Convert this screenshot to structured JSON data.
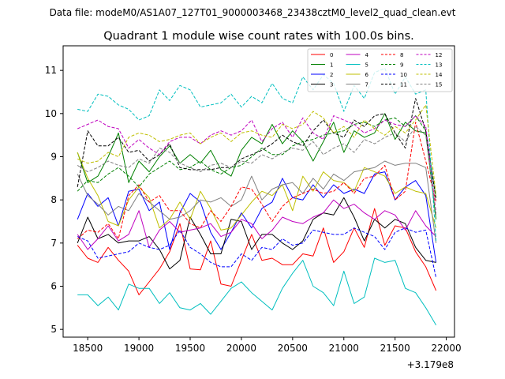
{
  "chart_data": {
    "type": "line",
    "suptitle": "Data file: modeM0/AS1A07_127T01_9000003468_23438cztM0_level2_quad_clean.evt",
    "title": "Quadrant 1 module wise count rates with 100.0s bins.",
    "xlabel": "",
    "ylabel": "",
    "x_offset_label": "+3.179e8",
    "xlim": [
      18260,
      22080
    ],
    "ylim": [
      4.82,
      11.57
    ],
    "xticks": [
      18500,
      19000,
      19500,
      20000,
      20500,
      21000,
      21500,
      22000
    ],
    "yticks": [
      5,
      6,
      7,
      8,
      9,
      10,
      11
    ],
    "x": [
      18400,
      18500,
      18600,
      18700,
      18800,
      18900,
      19000,
      19100,
      19200,
      19300,
      19400,
      19500,
      19600,
      19700,
      19800,
      19900,
      20000,
      20100,
      20200,
      20300,
      20400,
      20500,
      20600,
      20700,
      20800,
      20900,
      21000,
      21100,
      21200,
      21300,
      21400,
      21500,
      21600,
      21700,
      21800,
      21900
    ],
    "legend_position": "upper right",
    "series": [
      {
        "name": "0",
        "color": "#ff0000",
        "dash": "solid",
        "values": [
          6.95,
          6.65,
          6.55,
          6.9,
          6.6,
          6.35,
          5.8,
          6.1,
          6.4,
          6.8,
          7.45,
          6.4,
          6.38,
          7.05,
          6.05,
          6.0,
          6.6,
          7.2,
          6.6,
          6.65,
          6.5,
          6.5,
          6.75,
          6.7,
          7.35,
          6.55,
          6.8,
          7.35,
          6.9,
          7.8,
          6.95,
          7.4,
          7.35,
          6.8,
          6.45,
          5.9
        ]
      },
      {
        "name": "1",
        "color": "#008000",
        "dash": "solid",
        "values": [
          9.1,
          8.4,
          8.55,
          9.0,
          9.55,
          8.4,
          8.9,
          8.65,
          9.0,
          9.25,
          8.85,
          9.05,
          8.85,
          9.15,
          8.7,
          8.55,
          9.15,
          9.45,
          9.3,
          9.75,
          9.3,
          9.6,
          9.35,
          8.9,
          9.35,
          9.8,
          9.1,
          9.6,
          9.45,
          9.55,
          10.0,
          9.4,
          9.8,
          9.6,
          9.55,
          7.55
        ]
      },
      {
        "name": "2",
        "color": "#0000ff",
        "dash": "solid",
        "values": [
          7.55,
          8.15,
          7.85,
          8.05,
          7.4,
          8.2,
          8.25,
          7.75,
          7.95,
          6.85,
          7.7,
          8.15,
          7.95,
          7.25,
          6.85,
          7.25,
          7.7,
          7.35,
          7.8,
          7.95,
          8.5,
          8.05,
          8.0,
          8.35,
          8.05,
          8.35,
          8.15,
          8.25,
          8.15,
          8.6,
          8.65,
          8.0,
          8.3,
          8.45,
          8.1,
          6.55
        ]
      },
      {
        "name": "3",
        "color": "#000000",
        "dash": "solid",
        "values": [
          7.0,
          7.6,
          7.1,
          7.2,
          7.0,
          7.05,
          7.05,
          7.15,
          6.85,
          6.4,
          6.6,
          7.6,
          7.2,
          6.75,
          6.75,
          7.55,
          7.5,
          6.85,
          7.2,
          7.2,
          7.0,
          6.85,
          7.05,
          7.55,
          7.7,
          7.65,
          8.05,
          7.6,
          7.05,
          7.55,
          7.35,
          7.55,
          7.45,
          6.9,
          6.6,
          6.55
        ]
      },
      {
        "name": "4",
        "color": "#bf00bf",
        "dash": "solid",
        "values": [
          7.2,
          6.85,
          7.1,
          7.4,
          7.05,
          7.2,
          7.75,
          6.9,
          7.3,
          7.5,
          7.25,
          7.3,
          7.35,
          7.45,
          7.15,
          7.25,
          7.55,
          7.45,
          7.1,
          7.3,
          7.6,
          7.5,
          7.45,
          7.6,
          7.7,
          8.0,
          7.8,
          7.9,
          7.7,
          7.55,
          7.75,
          7.65,
          7.3,
          7.75,
          7.4,
          7.15
        ]
      },
      {
        "name": "5",
        "color": "#00bfbf",
        "dash": "solid",
        "values": [
          5.8,
          5.8,
          5.55,
          5.75,
          5.45,
          6.05,
          5.95,
          5.95,
          5.6,
          5.85,
          5.5,
          5.45,
          5.6,
          5.35,
          5.65,
          5.95,
          6.1,
          5.85,
          5.65,
          5.45,
          5.95,
          6.3,
          6.6,
          6.0,
          5.85,
          5.55,
          6.35,
          5.6,
          5.75,
          6.65,
          6.55,
          6.6,
          5.95,
          5.85,
          5.5,
          5.1
        ]
      },
      {
        "name": "6",
        "color": "#bfbf00",
        "dash": "solid",
        "values": [
          9.1,
          8.5,
          8.1,
          7.5,
          7.4,
          8.0,
          8.3,
          8.05,
          7.35,
          7.55,
          7.95,
          7.55,
          8.2,
          7.8,
          7.3,
          7.35,
          7.65,
          7.95,
          8.2,
          8.1,
          8.35,
          7.75,
          8.55,
          8.2,
          8.65,
          8.45,
          8.4,
          8.2,
          8.75,
          8.65,
          8.55,
          8.15,
          8.3,
          8.2,
          8.15,
          7.35
        ]
      },
      {
        "name": "7",
        "color": "#808080",
        "dash": "solid",
        "values": [
          8.6,
          8.1,
          7.9,
          7.65,
          7.85,
          7.75,
          8.15,
          7.95,
          7.75,
          7.55,
          7.6,
          7.75,
          8.0,
          7.95,
          8.05,
          7.85,
          8.0,
          8.55,
          8.0,
          8.25,
          8.35,
          8.4,
          8.15,
          8.5,
          8.25,
          8.6,
          8.45,
          8.65,
          8.7,
          8.75,
          8.9,
          8.8,
          8.85,
          8.85,
          8.75,
          7.0
        ]
      },
      {
        "name": "8",
        "color": "#ff0000",
        "dash": "dashed",
        "values": [
          7.1,
          7.3,
          7.25,
          7.45,
          7.1,
          8.1,
          8.35,
          7.95,
          8.1,
          7.75,
          7.75,
          7.45,
          7.35,
          7.75,
          7.5,
          7.85,
          8.3,
          8.25,
          7.9,
          7.5,
          7.85,
          8.05,
          8.15,
          8.25,
          8.15,
          8.2,
          8.4,
          8.15,
          8.5,
          8.55,
          8.8,
          8.0,
          8.2,
          9.8,
          8.9,
          7.95
        ]
      },
      {
        "name": "9",
        "color": "#008000",
        "dash": "dashed",
        "values": [
          8.2,
          8.45,
          8.4,
          8.6,
          8.75,
          8.55,
          8.3,
          8.6,
          8.75,
          8.9,
          8.7,
          8.75,
          8.9,
          8.7,
          8.6,
          8.75,
          8.8,
          9.0,
          9.2,
          9.05,
          9.05,
          9.25,
          9.35,
          9.4,
          9.5,
          9.55,
          9.6,
          9.75,
          9.8,
          9.7,
          9.85,
          9.9,
          9.7,
          9.95,
          9.6,
          8.05
        ]
      },
      {
        "name": "10",
        "color": "#0000ff",
        "dash": "dashed",
        "values": [
          7.15,
          7.05,
          6.65,
          6.7,
          6.75,
          6.8,
          7.0,
          6.9,
          6.85,
          6.95,
          7.3,
          6.9,
          6.75,
          6.55,
          6.45,
          6.45,
          6.75,
          6.6,
          6.9,
          6.85,
          7.1,
          6.95,
          7.0,
          7.3,
          7.25,
          7.2,
          7.2,
          7.35,
          7.25,
          7.15,
          6.85,
          7.25,
          7.35,
          7.25,
          7.3,
          6.2
        ]
      },
      {
        "name": "11",
        "color": "#000000",
        "dash": "dashed",
        "values": [
          8.3,
          9.6,
          9.25,
          9.25,
          9.45,
          9.1,
          9.15,
          8.9,
          9.05,
          9.3,
          8.75,
          8.7,
          8.7,
          8.7,
          8.75,
          8.75,
          8.95,
          9.05,
          9.15,
          9.3,
          9.5,
          9.35,
          9.25,
          9.6,
          9.85,
          9.55,
          9.45,
          9.85,
          9.7,
          9.95,
          10.0,
          9.55,
          9.2,
          10.35,
          9.6,
          8.0
        ]
      },
      {
        "name": "12",
        "color": "#bf00bf",
        "dash": "dashed",
        "values": [
          9.65,
          9.75,
          9.85,
          9.7,
          9.65,
          9.2,
          9.4,
          9.2,
          9.05,
          9.35,
          9.45,
          9.45,
          9.3,
          9.5,
          9.6,
          9.5,
          9.6,
          9.85,
          9.35,
          9.65,
          9.8,
          9.45,
          9.9,
          9.55,
          9.4,
          9.95,
          9.85,
          9.75,
          9.55,
          9.65,
          9.85,
          9.75,
          9.7,
          9.95,
          9.7,
          7.7
        ]
      },
      {
        "name": "13",
        "color": "#00bfbf",
        "dash": "dashed",
        "values": [
          10.1,
          10.05,
          10.45,
          10.4,
          10.2,
          10.1,
          9.85,
          9.95,
          10.55,
          10.3,
          10.65,
          10.55,
          10.15,
          10.2,
          10.25,
          10.45,
          10.15,
          10.4,
          10.25,
          10.7,
          10.35,
          10.25,
          10.85,
          10.55,
          10.9,
          10.7,
          10.05,
          10.65,
          10.35,
          10.95,
          11.05,
          10.45,
          10.85,
          10.45,
          10.55,
          7.05
        ]
      },
      {
        "name": "14",
        "color": "#bfbf00",
        "dash": "dashed",
        "values": [
          8.95,
          8.85,
          8.9,
          9.1,
          9.0,
          9.45,
          9.55,
          9.5,
          9.35,
          9.4,
          9.5,
          9.55,
          9.3,
          9.45,
          9.55,
          9.35,
          9.55,
          9.6,
          9.5,
          9.45,
          9.75,
          9.65,
          9.75,
          10.05,
          9.9,
          9.55,
          9.7,
          9.45,
          9.85,
          9.65,
          9.5,
          9.7,
          9.55,
          9.85,
          10.2,
          8.1
        ]
      },
      {
        "name": "15",
        "color": "#808080",
        "dash": "dashed",
        "values": [
          8.8,
          8.65,
          8.75,
          8.9,
          8.8,
          8.75,
          8.95,
          8.85,
          9.2,
          9.1,
          8.85,
          8.75,
          8.65,
          8.8,
          8.85,
          8.75,
          8.9,
          8.85,
          9.05,
          8.95,
          9.1,
          9.2,
          9.15,
          9.35,
          9.05,
          9.2,
          9.3,
          9.1,
          9.4,
          9.3,
          9.45,
          9.55,
          9.35,
          9.7,
          9.5,
          7.65
        ]
      }
    ]
  }
}
